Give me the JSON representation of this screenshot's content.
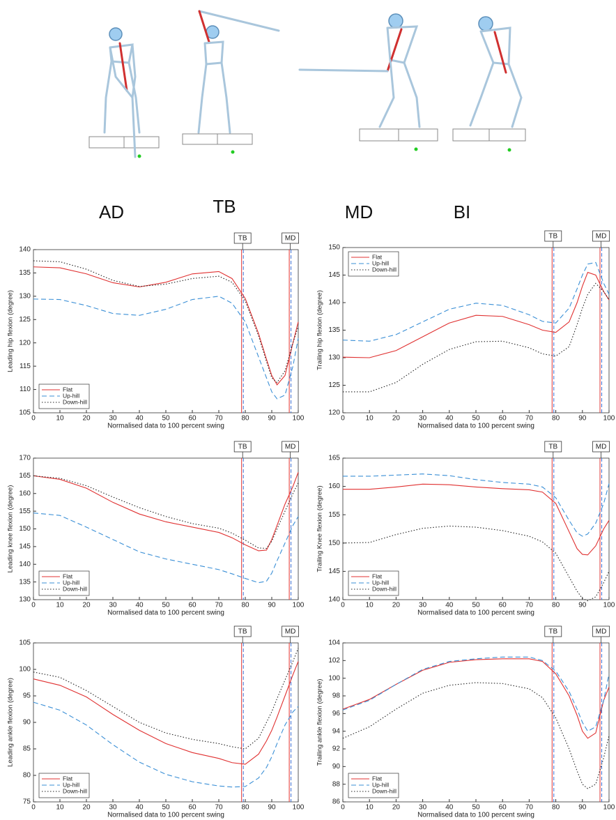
{
  "phase_labels": [
    "AD",
    "TB",
    "MD",
    "BI"
  ],
  "chart_data": [
    {
      "type": "line",
      "ylabel": "Leading hip flexion (degree)",
      "xlabel": "Normalised data to 100 percent swing",
      "x": [
        0,
        10,
        20,
        30,
        40,
        50,
        60,
        70,
        75,
        80,
        85,
        88,
        90,
        92,
        95,
        98,
        100
      ],
      "xlim": [
        0,
        100
      ],
      "xticks": [
        0,
        10,
        20,
        30,
        40,
        50,
        60,
        70,
        80,
        90,
        100
      ],
      "ylim": [
        105,
        140
      ],
      "yticks": [
        105,
        110,
        115,
        120,
        125,
        130,
        135,
        140
      ],
      "legend": "lower left",
      "markers": [
        {
          "label": "TB",
          "x": 79
        },
        {
          "label": "MD",
          "x": 97
        }
      ],
      "series": [
        {
          "name": "Flat",
          "color": "#e03030",
          "style": "solid",
          "values": [
            136.3,
            136.1,
            134.8,
            132.9,
            132.0,
            133.0,
            134.8,
            135.3,
            133.8,
            129.5,
            122,
            116.5,
            113,
            111,
            113,
            120,
            124.5
          ]
        },
        {
          "name": "Up-hill",
          "color": "#3a8fd6",
          "style": "dashed",
          "values": [
            129.4,
            129.3,
            128,
            126.3,
            125.9,
            127.2,
            129.3,
            130.0,
            128.5,
            124.5,
            117,
            112.5,
            109.5,
            108,
            108.8,
            115,
            121
          ]
        },
        {
          "name": "Down-hill",
          "color": "#222222",
          "style": "dotted",
          "values": [
            137.6,
            137.4,
            135.8,
            133.4,
            132.1,
            132.6,
            133.8,
            134.3,
            133,
            129,
            121.5,
            116,
            112.5,
            111.5,
            114,
            120,
            123.5
          ]
        }
      ]
    },
    {
      "type": "line",
      "ylabel": "Trailing hip flexion (degree)",
      "xlabel": "Normalised data to 100 percent swing",
      "x": [
        0,
        10,
        20,
        30,
        40,
        50,
        60,
        70,
        75,
        80,
        85,
        88,
        90,
        92,
        95,
        98,
        100
      ],
      "xlim": [
        0,
        100
      ],
      "xticks": [
        0,
        10,
        20,
        30,
        40,
        50,
        60,
        70,
        80,
        90,
        100
      ],
      "ylim": [
        120,
        150
      ],
      "yticks": [
        120,
        125,
        130,
        135,
        140,
        145,
        150
      ],
      "legend": "upper left",
      "markers": [
        {
          "label": "TB",
          "x": 79
        },
        {
          "label": "MD",
          "x": 97
        }
      ],
      "series": [
        {
          "name": "Flat",
          "color": "#e03030",
          "style": "solid",
          "values": [
            130.1,
            130.0,
            131.3,
            133.8,
            136.3,
            137.7,
            137.5,
            136.0,
            135.0,
            134.6,
            136.5,
            140,
            143,
            145.5,
            145,
            142,
            140.5
          ]
        },
        {
          "name": "Up-hill",
          "color": "#3a8fd6",
          "style": "dashed",
          "values": [
            133.2,
            133.0,
            134.2,
            136.5,
            138.8,
            139.9,
            139.5,
            137.8,
            136.6,
            136.3,
            139,
            142.5,
            145,
            147,
            147.3,
            143.5,
            141.5
          ]
        },
        {
          "name": "Down-hill",
          "color": "#222222",
          "style": "dotted",
          "values": [
            123.8,
            123.8,
            125.5,
            128.8,
            131.5,
            132.9,
            133.0,
            131.8,
            130.7,
            130.3,
            132,
            136,
            139,
            141.5,
            143.5,
            142,
            140.5
          ]
        }
      ]
    },
    {
      "type": "line",
      "ylabel": "Leading knee flexion (degree)",
      "xlabel": "Normalised data to 100 percent swing",
      "x": [
        0,
        10,
        20,
        30,
        40,
        50,
        60,
        70,
        75,
        80,
        85,
        88,
        90,
        92,
        95,
        98,
        100
      ],
      "xlim": [
        0,
        100
      ],
      "xticks": [
        0,
        10,
        20,
        30,
        40,
        50,
        60,
        70,
        80,
        90,
        100
      ],
      "ylim": [
        130,
        170
      ],
      "yticks": [
        130,
        135,
        140,
        145,
        150,
        155,
        160,
        165,
        170
      ],
      "legend": "lower left",
      "markers": [
        {
          "label": "TB",
          "x": 79
        },
        {
          "label": "MD",
          "x": 97
        }
      ],
      "series": [
        {
          "name": "Flat",
          "color": "#e03030",
          "style": "solid",
          "values": [
            165,
            164,
            161.5,
            157.5,
            154.2,
            152,
            150.5,
            149,
            147.5,
            145.5,
            143.8,
            144,
            147,
            151,
            157,
            162,
            166
          ]
        },
        {
          "name": "Up-hill",
          "color": "#3a8fd6",
          "style": "dashed",
          "values": [
            154.5,
            153.8,
            150.5,
            147,
            143.5,
            141.5,
            140,
            138.5,
            137.3,
            136,
            134.8,
            135.2,
            137.5,
            141,
            146,
            151,
            153.5
          ]
        },
        {
          "name": "Down-hill",
          "color": "#222222",
          "style": "dotted",
          "values": [
            165,
            164.3,
            162.2,
            159,
            156,
            153.5,
            151.5,
            150.2,
            148.8,
            146.8,
            144.6,
            144.5,
            146.5,
            150,
            155,
            160,
            163
          ]
        }
      ]
    },
    {
      "type": "line",
      "ylabel": "Trailing Knee flexion (degree)",
      "xlabel": "Normalised data to 100 percent swing",
      "x": [
        0,
        10,
        20,
        30,
        40,
        50,
        60,
        70,
        75,
        80,
        85,
        88,
        90,
        92,
        95,
        98,
        100
      ],
      "xlim": [
        0,
        100
      ],
      "xticks": [
        0,
        10,
        20,
        30,
        40,
        50,
        60,
        70,
        80,
        90,
        100
      ],
      "ylim": [
        140,
        165
      ],
      "yticks": [
        140,
        145,
        150,
        155,
        160,
        165
      ],
      "legend": "lower left",
      "markers": [
        {
          "label": "TB",
          "x": 79
        },
        {
          "label": "MD",
          "x": 97
        }
      ],
      "series": [
        {
          "name": "Flat",
          "color": "#e03030",
          "style": "solid",
          "values": [
            159.5,
            159.5,
            159.9,
            160.4,
            160.3,
            159.9,
            159.6,
            159.4,
            159,
            157,
            152,
            149,
            148,
            147.9,
            149.5,
            152.5,
            154
          ]
        },
        {
          "name": "Up-hill",
          "color": "#3a8fd6",
          "style": "dashed",
          "values": [
            161.8,
            161.8,
            162,
            162.2,
            161.9,
            161.2,
            160.7,
            160.4,
            159.9,
            158,
            154,
            151.8,
            151.2,
            151.6,
            153.5,
            157,
            160.5
          ]
        },
        {
          "name": "Down-hill",
          "color": "#222222",
          "style": "dotted",
          "values": [
            150,
            150.1,
            151.5,
            152.6,
            153,
            152.8,
            152.2,
            151.2,
            150.2,
            148.2,
            144,
            141.5,
            140.2,
            139.8,
            140.5,
            143,
            145
          ]
        }
      ]
    },
    {
      "type": "line",
      "ylabel": "Leading ankle flexion (degree)",
      "xlabel": "Normalised data to 100 percent swing",
      "x": [
        0,
        10,
        20,
        30,
        40,
        50,
        60,
        70,
        75,
        80,
        85,
        88,
        90,
        92,
        95,
        98,
        100
      ],
      "xlim": [
        0,
        100
      ],
      "xticks": [
        0,
        10,
        20,
        30,
        40,
        50,
        60,
        70,
        80,
        90,
        100
      ],
      "ylim": [
        75,
        105
      ],
      "yticks": [
        75,
        80,
        85,
        90,
        95,
        100,
        105
      ],
      "legend": "lower left",
      "markers": [
        {
          "label": "TB",
          "x": 79
        },
        {
          "label": "MD",
          "x": 97
        }
      ],
      "series": [
        {
          "name": "Flat",
          "color": "#e03030",
          "style": "solid",
          "values": [
            98.2,
            97,
            94.8,
            91.5,
            88.5,
            86,
            84.3,
            83.2,
            82.4,
            82.1,
            84,
            86.5,
            88.5,
            91,
            95,
            99,
            101.5
          ]
        },
        {
          "name": "Up-hill",
          "color": "#3a8fd6",
          "style": "dashed",
          "values": [
            93.8,
            92.3,
            89.5,
            85.8,
            82.5,
            80.2,
            78.8,
            78,
            77.8,
            77.9,
            79.5,
            81.5,
            83.5,
            86,
            89.5,
            92,
            93
          ]
        },
        {
          "name": "Down-hill",
          "color": "#222222",
          "style": "dotted",
          "values": [
            99.5,
            98.5,
            96,
            93,
            90,
            88,
            86.8,
            86,
            85.4,
            85,
            87,
            90,
            92,
            94.5,
            98,
            101.5,
            104
          ]
        }
      ]
    },
    {
      "type": "line",
      "ylabel": "Trailing ankle flexion (degree)",
      "xlabel": "Normalised data to 100 percent swing",
      "x": [
        0,
        10,
        20,
        30,
        40,
        50,
        60,
        70,
        75,
        80,
        85,
        88,
        90,
        92,
        95,
        98,
        100
      ],
      "xlim": [
        0,
        100
      ],
      "xticks": [
        0,
        10,
        20,
        30,
        40,
        50,
        60,
        70,
        80,
        90,
        100
      ],
      "ylim": [
        86,
        104
      ],
      "yticks": [
        86,
        88,
        90,
        92,
        94,
        96,
        98,
        100,
        102,
        104
      ],
      "legend": "lower left",
      "markers": [
        {
          "label": "TB",
          "x": 79
        },
        {
          "label": "MD",
          "x": 97
        }
      ],
      "series": [
        {
          "name": "Flat",
          "color": "#e03030",
          "style": "solid",
          "values": [
            96.5,
            97.6,
            99.3,
            100.9,
            101.8,
            102.1,
            102.2,
            102.2,
            101.9,
            100.5,
            98,
            95.8,
            94,
            93.2,
            93.8,
            97.5,
            99
          ]
        },
        {
          "name": "Up-hill",
          "color": "#3a8fd6",
          "style": "dashed",
          "values": [
            96.4,
            97.5,
            99.3,
            101,
            101.9,
            102.2,
            102.4,
            102.4,
            102,
            100.8,
            98.5,
            96.5,
            95,
            94,
            94.5,
            97.5,
            100.5
          ]
        },
        {
          "name": "Down-hill",
          "color": "#222222",
          "style": "dotted",
          "values": [
            93.2,
            94.5,
            96.5,
            98.3,
            99.2,
            99.5,
            99.4,
            98.8,
            97.8,
            95.5,
            92,
            89.5,
            88,
            87.5,
            88,
            91,
            93.5
          ]
        }
      ]
    }
  ]
}
